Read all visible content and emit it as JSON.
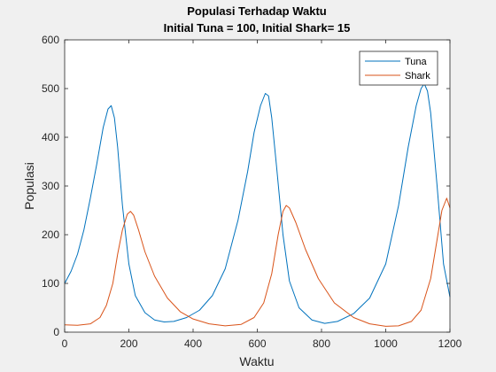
{
  "chart_data": {
    "type": "line",
    "title": "Populasi Terhadap Waktu",
    "subtitle": "Initial Tuna = 100, Initial Shark= 15",
    "xlabel": "Waktu",
    "ylabel": "Populasi",
    "xlim": [
      0,
      1200
    ],
    "ylim": [
      0,
      600
    ],
    "xticks": [
      0,
      200,
      400,
      600,
      800,
      1000,
      1200
    ],
    "yticks": [
      0,
      100,
      200,
      300,
      400,
      500,
      600
    ],
    "grid": false,
    "legend": "top-right",
    "series": [
      {
        "name": "Tuna",
        "color": "#0072BD",
        "x": [
          0,
          20,
          40,
          60,
          80,
          100,
          120,
          135,
          145,
          155,
          165,
          180,
          200,
          220,
          250,
          280,
          310,
          340,
          380,
          420,
          460,
          500,
          540,
          570,
          590,
          610,
          625,
          635,
          645,
          660,
          680,
          700,
          730,
          770,
          810,
          850,
          900,
          950,
          1000,
          1040,
          1070,
          1095,
          1110,
          1120,
          1130,
          1140,
          1160,
          1180,
          1200
        ],
        "y": [
          100,
          125,
          160,
          210,
          275,
          345,
          420,
          458,
          465,
          440,
          380,
          260,
          140,
          75,
          40,
          25,
          21,
          22,
          30,
          45,
          75,
          130,
          230,
          330,
          410,
          465,
          490,
          485,
          440,
          340,
          200,
          105,
          50,
          25,
          18,
          22,
          38,
          70,
          140,
          260,
          380,
          465,
          500,
          510,
          495,
          450,
          300,
          140,
          72
        ]
      },
      {
        "name": "Shark",
        "color": "#D95319",
        "x": [
          0,
          40,
          80,
          110,
          130,
          150,
          165,
          180,
          195,
          205,
          215,
          230,
          250,
          280,
          320,
          360,
          400,
          450,
          500,
          550,
          590,
          620,
          645,
          665,
          680,
          690,
          700,
          720,
          750,
          790,
          840,
          900,
          950,
          1000,
          1040,
          1080,
          1110,
          1140,
          1160,
          1175,
          1190,
          1200
        ],
        "y": [
          15,
          14,
          17,
          30,
          55,
          100,
          160,
          210,
          242,
          248,
          240,
          210,
          165,
          115,
          70,
          42,
          27,
          17,
          13,
          16,
          30,
          60,
          120,
          200,
          248,
          260,
          255,
          225,
          170,
          110,
          60,
          30,
          17,
          12,
          13,
          22,
          45,
          110,
          190,
          250,
          275,
          255
        ]
      }
    ]
  }
}
